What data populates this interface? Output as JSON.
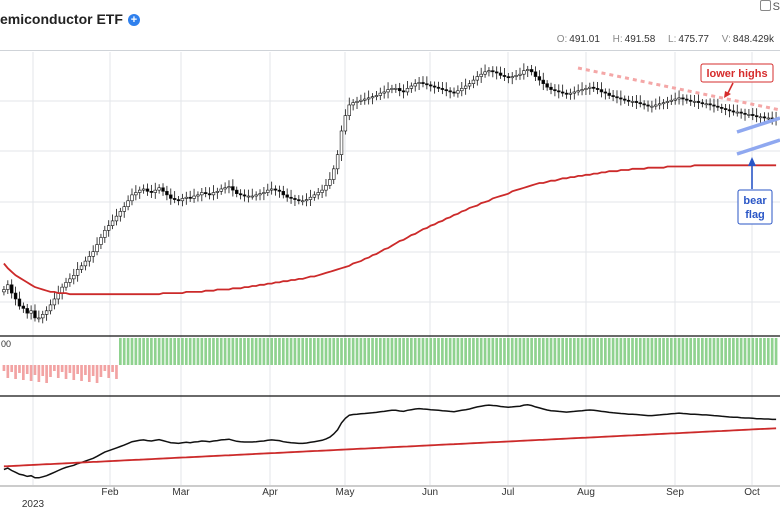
{
  "header": {
    "title": "emiconductor ETF",
    "corner_text": "S",
    "ohlc": {
      "o_label": "O:",
      "o": "491.01",
      "h_label": "H:",
      "h": "491.58",
      "l_label": "L:",
      "l": "475.77",
      "v_label": "V:",
      "v": "848.429k"
    }
  },
  "annotations": {
    "lower_highs": "lower highs",
    "bear_flag_1": "bear",
    "bear_flag_2": "flag",
    "indicator_label": "00"
  },
  "colors": {
    "up": "#ffffff",
    "down": "#000000",
    "wick": "#111111",
    "ma": "#cc2a2a",
    "grid": "#e3e6ea",
    "hist_pos": "#8fd28f",
    "hist_neg": "#f2a3a3",
    "highs_line": "#f4a7a7",
    "flag": "#8fa8f0",
    "flag_text": "#2a56c6",
    "highs_text": "#d62c2c"
  },
  "chart_data": {
    "type": "candlestick",
    "x_tick_labels": [
      "2023",
      "Feb",
      "Mar",
      "Apr",
      "May",
      "Jun",
      "Jul",
      "Aug",
      "Sep",
      "Oct"
    ],
    "price": {
      "days": 200,
      "close": [
        386,
        390,
        383,
        378,
        372,
        370,
        366,
        368,
        362,
        362,
        365,
        368,
        373,
        378,
        383,
        388,
        392,
        395,
        398,
        403,
        406,
        410,
        414,
        418,
        424,
        430,
        436,
        440,
        444,
        448,
        452,
        456,
        461,
        466,
        468,
        470,
        471,
        469,
        468,
        470,
        472,
        469,
        466,
        463,
        462,
        461,
        463,
        464,
        463,
        465,
        466,
        468,
        467,
        466,
        468,
        469,
        471,
        472,
        473,
        470,
        467,
        466,
        465,
        465,
        465,
        466,
        467,
        468,
        470,
        471,
        470,
        469,
        466,
        464,
        463,
        462,
        461,
        461,
        462,
        464,
        466,
        468,
        470,
        474,
        479,
        488,
        500,
        520,
        533,
        542,
        544,
        545,
        546,
        547,
        548,
        549,
        550,
        552,
        553,
        555,
        556,
        556,
        554,
        553,
        556,
        558,
        560,
        561,
        560,
        559,
        558,
        557,
        556,
        555,
        554,
        553,
        552,
        554,
        556,
        558,
        560,
        563,
        566,
        568,
        570,
        571,
        570,
        569,
        567,
        566,
        565,
        566,
        567,
        568,
        571,
        572,
        570,
        566,
        563,
        560,
        557,
        555,
        554,
        553,
        552,
        551,
        552,
        553,
        554,
        555,
        556,
        557,
        556,
        555,
        553,
        552,
        550,
        549,
        548,
        547,
        546,
        545,
        545,
        544,
        543,
        542,
        541,
        541,
        542,
        543,
        544,
        545,
        546,
        547,
        548,
        547,
        546,
        545,
        545,
        544,
        543,
        543,
        542,
        541,
        540,
        539,
        538,
        537,
        536,
        536,
        535,
        534,
        534,
        533,
        532,
        532,
        531,
        531,
        530,
        530
      ],
      "ma": [
        408,
        404,
        401,
        398,
        396,
        394,
        392,
        390,
        388,
        387,
        386,
        385,
        384,
        384,
        383,
        383,
        383,
        382,
        382,
        382,
        382,
        382,
        382,
        382,
        382,
        382,
        382,
        382,
        382,
        382,
        382,
        382,
        382,
        382,
        382,
        382,
        382,
        382,
        382,
        382,
        382,
        383,
        383,
        383,
        383,
        383,
        383,
        384,
        384,
        384,
        384,
        384,
        385,
        385,
        385,
        386,
        386,
        386,
        386,
        387,
        387,
        387,
        388,
        388,
        389,
        389,
        390,
        390,
        391,
        391,
        392,
        392,
        393,
        393,
        394,
        394,
        395,
        395,
        396,
        397,
        397,
        398,
        399,
        400,
        401,
        402,
        403,
        404,
        405,
        406,
        408,
        409,
        410,
        412,
        413,
        415,
        416,
        418,
        420,
        421,
        423,
        425,
        427,
        428,
        430,
        432,
        433,
        435,
        437,
        438,
        440,
        441,
        443,
        444,
        446,
        447,
        449,
        450,
        452,
        453,
        455,
        456,
        457,
        459,
        460,
        461,
        463,
        464,
        465,
        466,
        467,
        469,
        470,
        471,
        472,
        473,
        474,
        475,
        476,
        476,
        477,
        478,
        478,
        479,
        480,
        480,
        481,
        481,
        482,
        482,
        483,
        483,
        484,
        484,
        485,
        485,
        486,
        486,
        486,
        487,
        487,
        487,
        488,
        488,
        488,
        488,
        489,
        489,
        489,
        489,
        489,
        490,
        490,
        490,
        490,
        490,
        490,
        490,
        491,
        491,
        491,
        491,
        491,
        491,
        491,
        491,
        491,
        491,
        491,
        491,
        491,
        491,
        491,
        491,
        491,
        491,
        491,
        491,
        491,
        491
      ]
    },
    "breadth": {
      "values_negative_first": 30,
      "series": [
        0.28,
        0.26,
        0.25,
        0.24,
        0.22,
        0.2,
        0.18,
        0.18,
        0.17,
        0.2,
        0.22,
        0.24,
        0.26,
        0.3,
        0.32,
        0.34,
        0.36,
        0.38,
        0.4,
        0.42,
        0.44,
        0.46,
        0.48,
        0.5,
        0.52,
        0.55,
        0.58,
        0.6,
        0.6,
        0.62
      ]
    }
  }
}
